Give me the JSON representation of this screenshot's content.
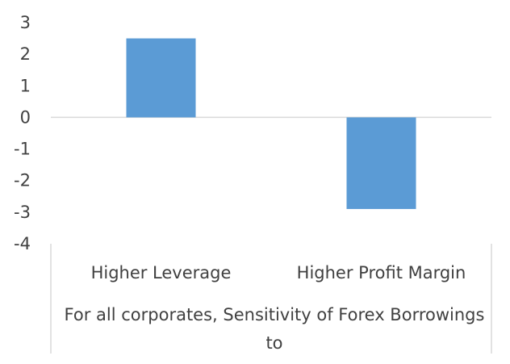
{
  "chart_data": {
    "type": "bar",
    "categories": [
      "Higher Leverage",
      "Higher Profit Margin"
    ],
    "values": [
      2.5,
      -2.9
    ],
    "group_label_lines": [
      "For all corporates, Sensitivity of Forex Borrowings",
      "to"
    ],
    "title": "",
    "xlabel": "",
    "ylabel": "",
    "ylim": [
      -4,
      3
    ],
    "yticks": [
      "3",
      "2",
      "1",
      "0",
      "-1",
      "-2",
      "-3",
      "-4"
    ],
    "grid": false,
    "legend": "none",
    "bar_color": "#5b9bd5",
    "axis_color": "#d9d9d9",
    "text_color": "#404040"
  }
}
